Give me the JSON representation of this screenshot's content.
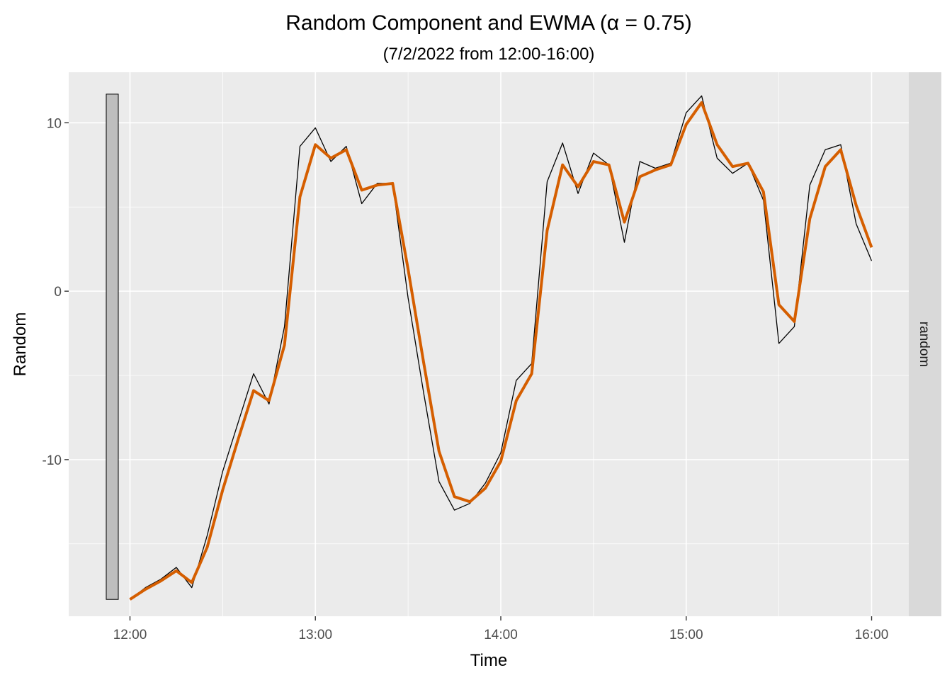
{
  "chart_data": {
    "type": "line",
    "title": "Random Component and EWMA (α = 0.75)",
    "subtitle": "(7/2/2022 from 12:00-16:00)",
    "xlabel": "Time",
    "ylabel": "Random",
    "facet_label": "random",
    "x_tick_labels": [
      "12:00",
      "13:00",
      "14:00",
      "15:00",
      "16:00"
    ],
    "y_tick_values": [
      -10,
      0,
      10
    ],
    "ylim": [
      -19.3,
      13.0
    ],
    "grid": true,
    "range_bar": {
      "min": -18.3,
      "max": 11.7,
      "fill": "#bebebe"
    },
    "x": [
      "12:00",
      "12:05",
      "12:10",
      "12:15",
      "12:20",
      "12:25",
      "12:30",
      "12:35",
      "12:40",
      "12:45",
      "12:50",
      "12:55",
      "13:00",
      "13:05",
      "13:10",
      "13:15",
      "13:20",
      "13:25",
      "13:30",
      "13:35",
      "13:40",
      "13:45",
      "13:50",
      "13:55",
      "14:00",
      "14:05",
      "14:10",
      "14:15",
      "14:20",
      "14:25",
      "14:30",
      "14:35",
      "14:40",
      "14:45",
      "14:50",
      "14:55",
      "15:00",
      "15:05",
      "15:10",
      "15:15",
      "15:20",
      "15:25",
      "15:30",
      "15:35",
      "15:40",
      "15:45",
      "15:50",
      "15:55",
      "16:00"
    ],
    "series": [
      {
        "name": "random",
        "color": "#000000",
        "values": [
          -18.3,
          -17.6,
          -17.1,
          -16.4,
          -17.6,
          -14.5,
          -10.7,
          -7.8,
          -4.9,
          -6.7,
          -2.1,
          8.6,
          9.7,
          7.7,
          8.6,
          5.2,
          6.4,
          6.4,
          -0.4,
          -6.0,
          -11.3,
          -13.0,
          -12.6,
          -11.4,
          -9.6,
          -5.3,
          -4.3,
          6.5,
          8.8,
          5.8,
          8.2,
          7.5,
          2.9,
          7.7,
          7.3,
          7.6,
          10.6,
          11.6,
          7.9,
          7.0,
          7.6,
          5.4,
          -3.1,
          -2.1,
          6.3,
          8.4,
          8.7,
          4.0,
          1.8
        ]
      },
      {
        "name": "ewma",
        "color": "#d55e00",
        "values": [
          -18.3,
          -17.7,
          -17.2,
          -16.6,
          -17.3,
          -15.2,
          -11.8,
          -8.8,
          -5.9,
          -6.5,
          -3.2,
          5.6,
          8.7,
          7.9,
          8.4,
          6.0,
          6.3,
          6.4,
          1.3,
          -4.2,
          -9.5,
          -12.2,
          -12.5,
          -11.7,
          -10.1,
          -6.5,
          -4.9,
          3.6,
          7.5,
          6.2,
          7.7,
          7.5,
          4.1,
          6.8,
          7.2,
          7.5,
          9.9,
          11.2,
          8.7,
          7.4,
          7.6,
          5.9,
          -0.8,
          -1.8,
          4.3,
          7.4,
          8.4,
          5.1,
          2.6
        ]
      }
    ]
  }
}
